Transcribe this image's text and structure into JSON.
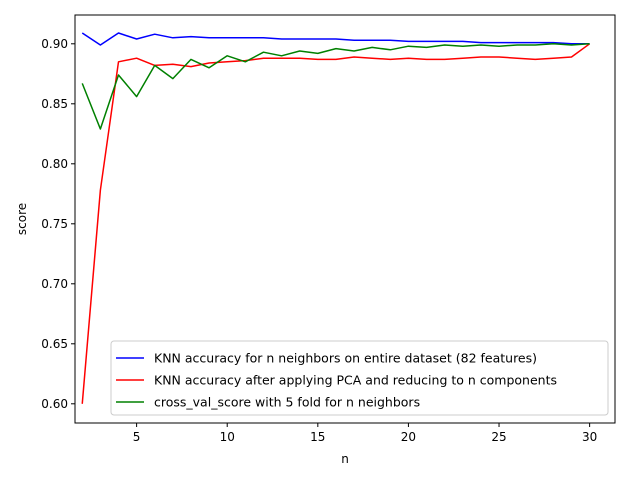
{
  "chart_data": {
    "type": "line",
    "title": "",
    "xlabel": "n",
    "ylabel": "score",
    "xlim": [
      1.6,
      31.4
    ],
    "ylim": [
      0.584,
      0.924
    ],
    "xticks": [
      5,
      10,
      15,
      20,
      25,
      30
    ],
    "yticks": [
      0.6,
      0.65,
      0.7,
      0.75,
      0.8,
      0.85,
      0.9
    ],
    "grid": false,
    "legend_position": "lower-right",
    "x": [
      2,
      3,
      4,
      5,
      6,
      7,
      8,
      9,
      10,
      11,
      12,
      13,
      14,
      15,
      16,
      17,
      18,
      19,
      20,
      21,
      22,
      23,
      24,
      25,
      26,
      27,
      28,
      29,
      30
    ],
    "series": [
      {
        "name": "KNN accuracy for n neighbors on entire dataset (82 features)",
        "color": "#0000ff",
        "values": [
          0.909,
          0.899,
          0.909,
          0.904,
          0.908,
          0.905,
          0.906,
          0.905,
          0.905,
          0.905,
          0.905,
          0.904,
          0.904,
          0.904,
          0.904,
          0.903,
          0.903,
          0.903,
          0.902,
          0.902,
          0.902,
          0.902,
          0.901,
          0.901,
          0.901,
          0.901,
          0.901,
          0.9,
          0.9
        ]
      },
      {
        "name": "KNN accuracy after applying PCA and reducing to n components",
        "color": "#ff0000",
        "values": [
          0.6,
          0.778,
          0.885,
          0.888,
          0.882,
          0.883,
          0.881,
          0.884,
          0.885,
          0.886,
          0.888,
          0.888,
          0.888,
          0.887,
          0.887,
          0.889,
          0.888,
          0.887,
          0.888,
          0.887,
          0.887,
          0.888,
          0.889,
          0.889,
          0.888,
          0.887,
          0.888,
          0.889,
          0.9
        ]
      },
      {
        "name": "cross_val_score with 5 fold for n neighbors",
        "color": "#008000",
        "values": [
          0.867,
          0.829,
          0.874,
          0.856,
          0.882,
          0.871,
          0.887,
          0.88,
          0.89,
          0.885,
          0.893,
          0.89,
          0.894,
          0.892,
          0.896,
          0.894,
          0.897,
          0.895,
          0.898,
          0.897,
          0.899,
          0.898,
          0.899,
          0.898,
          0.899,
          0.899,
          0.9,
          0.899,
          0.9
        ]
      }
    ]
  }
}
